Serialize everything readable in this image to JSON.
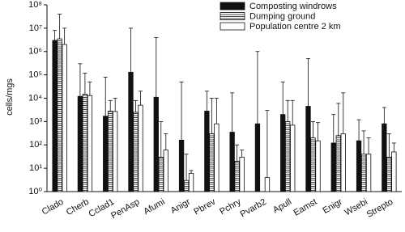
{
  "chart_data": {
    "type": "bar",
    "y_label": "cells/mgs",
    "log_scale": true,
    "legend": "top-right",
    "categories": [
      "Clado",
      "Cherb",
      "Cclad1",
      "PenAsp",
      "Afumi",
      "Anigr",
      "Pbrev",
      "Pchry",
      "Pvarb2",
      "Apull",
      "Eamst",
      "Enigr",
      "Wsebi",
      "Strepto"
    ],
    "series": [
      {
        "name": "Composting windrows",
        "color": "#111111",
        "hatch": false,
        "values": [
          3000000,
          12000,
          1700,
          130000,
          11000,
          160,
          2800,
          350,
          800,
          2000,
          4500,
          120,
          150,
          800
        ],
        "errors": [
          5000000,
          288000,
          78300,
          9870000,
          3989000,
          49840,
          17200,
          16650,
          999200,
          48000,
          495500,
          1880,
          1050,
          3200
        ]
      },
      {
        "name": "Dumping ground",
        "color": "#ffffff",
        "hatch": true,
        "values": [
          3500000,
          15000,
          2800,
          2500,
          30,
          3,
          300,
          20,
          null,
          1000,
          200,
          250,
          40,
          30
        ],
        "errors": [
          36500000,
          105000,
          5200,
          5500,
          970,
          37,
          9700,
          80,
          null,
          7000,
          800,
          5750,
          360,
          270
        ]
      },
      {
        "name": "Population centre 2 km",
        "color": "#ffffff",
        "hatch": false,
        "values": [
          2000000,
          13000,
          2700,
          5000,
          60,
          6,
          800,
          30,
          4,
          700,
          150,
          300,
          40,
          50
        ],
        "errors": [
          8000000,
          37000,
          7300,
          15000,
          240,
          2,
          9200,
          30,
          2996,
          7300,
          750,
          16700,
          160,
          70
        ]
      }
    ],
    "ylim": [
      1,
      100000000
    ],
    "yticks": [
      {
        "value": 1,
        "label": "10⁰"
      },
      {
        "value": 10,
        "label": "10¹"
      },
      {
        "value": 100,
        "label": "10²"
      },
      {
        "value": 1000,
        "label": "10³"
      },
      {
        "value": 10000,
        "label": "10⁴"
      },
      {
        "value": 100000,
        "label": "10⁵"
      },
      {
        "value": 1000000,
        "label": "10⁶"
      },
      {
        "value": 10000000,
        "label": "10⁷"
      },
      {
        "value": 100000000,
        "label": "10⁸"
      }
    ]
  }
}
